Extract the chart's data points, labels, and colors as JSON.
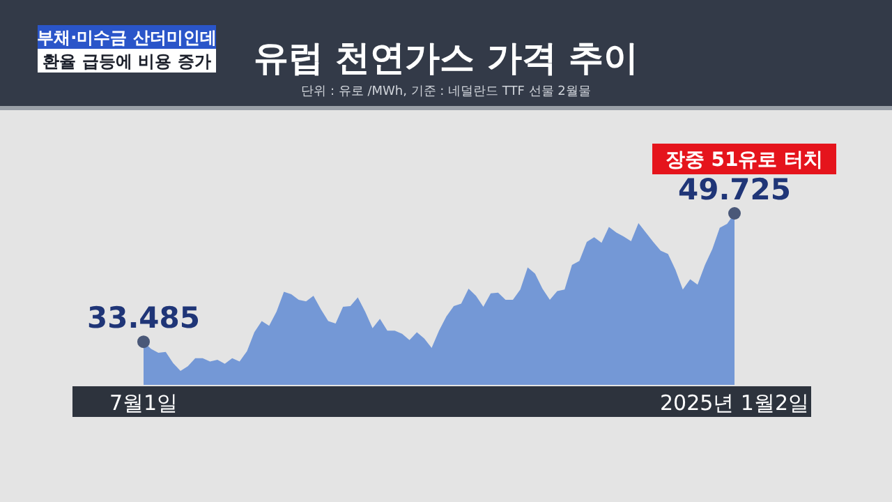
{
  "chart_data": {
    "type": "area",
    "title": "유럽 천연가스 가격 추이",
    "subtitle": "단위 : 유로 /MWh, 기준 : 네덜란드 TTF 선물 2월물",
    "annotations": [
      "부채·미수금 산더미인데",
      "환율 급등에 비용 증가",
      "장중 51유로 터치"
    ],
    "categories": [
      "7월1일",
      null,
      null,
      null,
      null,
      null,
      null,
      null,
      null,
      null,
      null,
      null,
      null,
      null,
      null,
      null,
      null,
      null,
      null,
      null,
      null,
      null,
      null,
      null,
      null,
      null,
      null,
      null,
      null,
      null,
      null,
      null,
      null,
      null,
      null,
      null,
      null,
      null,
      null,
      null,
      null,
      null,
      null,
      null,
      null,
      null,
      null,
      null,
      null,
      null,
      null,
      null,
      null,
      null,
      null,
      null,
      null,
      null,
      null,
      null,
      null,
      null,
      null,
      null,
      null,
      null,
      null,
      null,
      null,
      null,
      null,
      null,
      null,
      null,
      null,
      null,
      null,
      null,
      null,
      null,
      "2025년 1월2일"
    ],
    "values": [
      33.485,
      32.6,
      32.1,
      32.2,
      30.8,
      29.8,
      30.4,
      31.4,
      31.4,
      31.0,
      31.2,
      30.7,
      31.4,
      31.0,
      32.3,
      34.7,
      36.1,
      35.5,
      37.3,
      39.8,
      39.5,
      38.8,
      38.6,
      39.3,
      37.6,
      36.1,
      35.8,
      37.9,
      38.0,
      39.1,
      37.3,
      35.2,
      36.4,
      34.9,
      34.9,
      34.5,
      33.7,
      34.7,
      33.9,
      32.7,
      34.9,
      36.7,
      38.0,
      38.3,
      40.2,
      39.3,
      37.9,
      39.6,
      39.7,
      38.8,
      38.8,
      40.1,
      42.9,
      42.1,
      40.2,
      38.8,
      39.9,
      40.1,
      43.2,
      43.7,
      46.1,
      46.7,
      46.0,
      48.0,
      47.3,
      46.8,
      46.2,
      48.5,
      47.3,
      46.1,
      45.0,
      44.6,
      42.6,
      40.1,
      41.4,
      40.7,
      43.2,
      45.2,
      47.9,
      48.4,
      49.725
    ],
    "value_labels": [
      "33.485",
      null,
      null,
      null,
      null,
      null,
      null,
      null,
      null,
      null,
      null,
      null,
      null,
      null,
      null,
      null,
      null,
      null,
      null,
      null,
      null,
      null,
      null,
      null,
      null,
      null,
      null,
      null,
      null,
      null,
      null,
      null,
      null,
      null,
      null,
      null,
      null,
      null,
      null,
      null,
      null,
      null,
      null,
      null,
      null,
      null,
      null,
      null,
      null,
      null,
      null,
      null,
      null,
      null,
      null,
      null,
      null,
      null,
      null,
      null,
      null,
      null,
      null,
      null,
      null,
      null,
      null,
      null,
      null,
      null,
      null,
      null,
      null,
      null,
      null,
      null,
      null,
      null,
      null,
      null,
      "49.725"
    ],
    "color": "#7498d6",
    "tick_labels": "x"
  }
}
